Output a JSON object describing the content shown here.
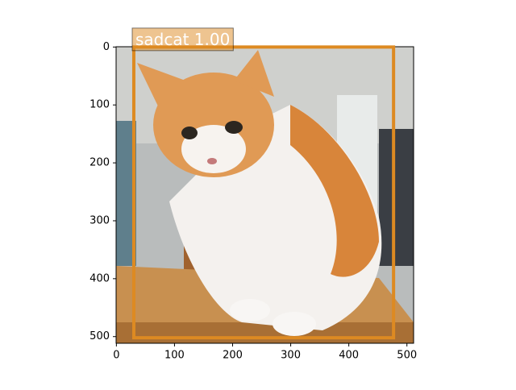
{
  "chart_data": {
    "type": "image",
    "xlim": [
      -0.5,
      511.5
    ],
    "ylim": [
      511.5,
      -0.5
    ],
    "xticks": [
      0,
      100,
      200,
      300,
      400,
      500
    ],
    "yticks": [
      0,
      100,
      200,
      300,
      400,
      500
    ],
    "boxes": [
      {
        "label": "sadcat 1.00",
        "x0": 30,
        "y0": 0,
        "x1": 477,
        "y1": 502,
        "color": "#dd8a22"
      }
    ]
  }
}
